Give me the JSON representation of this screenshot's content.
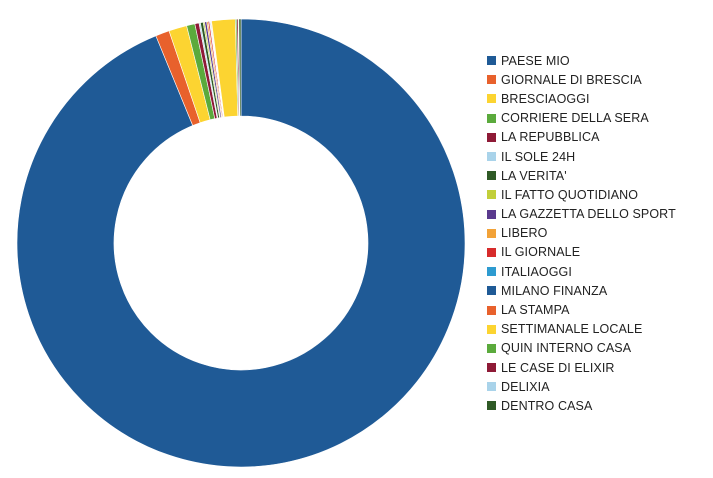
{
  "chart_data": {
    "type": "pie",
    "title": "",
    "legend_position": "right",
    "series": [
      {
        "name": "PAESE MIO",
        "value": 93.7,
        "color": "#1F5A96"
      },
      {
        "name": "GIORNALE DI BRESCIA",
        "value": 1.0,
        "color": "#E8612C"
      },
      {
        "name": "BRESCIAOGGI",
        "value": 1.3,
        "color": "#FCD431"
      },
      {
        "name": "CORRIERE DELLA SERA",
        "value": 0.6,
        "color": "#5BAA3C"
      },
      {
        "name": "LA REPUBBLICA",
        "value": 0.3,
        "color": "#8E1A36"
      },
      {
        "name": "IL SOLE 24H",
        "value": 0.1,
        "color": "#A9D3EA"
      },
      {
        "name": "LA VERITA'",
        "value": 0.2,
        "color": "#2F5A26"
      },
      {
        "name": "IL FATTO QUOTIDIANO",
        "value": 0.1,
        "color": "#C2CF3A"
      },
      {
        "name": "LA GAZZETTA DELLO SPORT",
        "value": 0.15,
        "color": "#5A3A8E"
      },
      {
        "name": "LIBERO",
        "value": 0.1,
        "color": "#F2A238"
      },
      {
        "name": "IL GIORNALE",
        "value": 0.1,
        "color": "#D72B2B"
      },
      {
        "name": "ITALIAOGGI",
        "value": 0.05,
        "color": "#2E9BD0"
      },
      {
        "name": "MILANO FINANZA",
        "value": 0.05,
        "color": "#1F5A96"
      },
      {
        "name": "LA STAMPA",
        "value": 0.05,
        "color": "#E8612C"
      },
      {
        "name": "SETTIMANALE LOCALE",
        "value": 1.7,
        "color": "#FCD431"
      },
      {
        "name": "QUIN INTERNO CASA",
        "value": 0.1,
        "color": "#5BAA3C"
      },
      {
        "name": "LE CASE DI ELIXIR",
        "value": 0.1,
        "color": "#8E1A36"
      },
      {
        "name": "DELIXIA",
        "value": 0.05,
        "color": "#A9D3EA"
      },
      {
        "name": "DENTRO CASA",
        "value": 0.15,
        "color": "#2F5A26"
      }
    ]
  }
}
